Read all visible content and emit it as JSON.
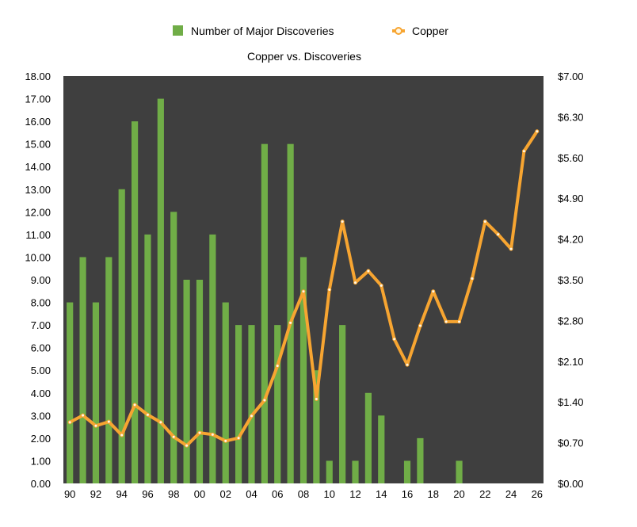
{
  "chart_data": {
    "type": "bar",
    "title": "Copper vs. Discoveries",
    "background_color": "#3f3f3f",
    "bar_color": "#70ad47",
    "line_color": "#f7a531",
    "legend": {
      "placement": "top",
      "bar_label": "Number of Major Discoveries",
      "line_label": "Copper"
    },
    "x": [
      "90",
      "91",
      "92",
      "93",
      "94",
      "95",
      "96",
      "97",
      "98",
      "99",
      "00",
      "01",
      "02",
      "03",
      "04",
      "05",
      "06",
      "07",
      "08",
      "09",
      "10",
      "11",
      "12",
      "13",
      "14",
      "15",
      "16",
      "17",
      "18",
      "19",
      "20",
      "21",
      "22",
      "23",
      "24",
      "25",
      "26"
    ],
    "x_tick_labels": [
      "90",
      "92",
      "94",
      "96",
      "98",
      "00",
      "02",
      "04",
      "06",
      "08",
      "10",
      "12",
      "14",
      "16",
      "18",
      "20",
      "22",
      "24",
      "26"
    ],
    "left_axis": {
      "ylim": [
        0,
        18
      ],
      "ticks": [
        "0.00",
        "1.00",
        "2.00",
        "3.00",
        "4.00",
        "5.00",
        "6.00",
        "7.00",
        "8.00",
        "9.00",
        "10.00",
        "11.00",
        "12.00",
        "13.00",
        "14.00",
        "15.00",
        "16.00",
        "17.00",
        "18.00"
      ]
    },
    "right_axis": {
      "ylim": [
        0,
        7
      ],
      "ticks": [
        "$0.00",
        "$0.70",
        "$1.40",
        "$2.10",
        "$2.80",
        "$3.50",
        "$4.20",
        "$4.90",
        "$5.60",
        "$6.30",
        "$7.00"
      ]
    },
    "series": [
      {
        "name": "Number of Major Discoveries",
        "type": "bar",
        "axis": "left",
        "values": [
          8,
          10,
          8,
          10,
          13,
          16,
          11,
          17,
          12,
          9,
          9,
          11,
          8,
          7,
          7,
          15,
          7,
          15,
          10,
          5,
          1,
          7,
          1,
          4,
          3,
          null,
          1,
          2,
          null,
          null,
          1,
          null,
          null,
          null,
          null,
          null,
          null
        ]
      },
      {
        "name": "Copper",
        "type": "line",
        "axis": "right",
        "values": [
          1.05,
          1.17,
          0.99,
          1.06,
          0.83,
          1.35,
          1.18,
          1.05,
          0.8,
          0.65,
          0.87,
          0.84,
          0.73,
          0.78,
          1.16,
          1.43,
          2.02,
          2.76,
          3.3,
          1.45,
          3.33,
          4.5,
          3.45,
          3.65,
          3.4,
          2.48,
          2.04,
          2.71,
          3.3,
          2.78,
          2.78,
          3.52,
          4.5,
          4.28,
          4.03,
          5.71,
          6.05
        ]
      }
    ]
  }
}
